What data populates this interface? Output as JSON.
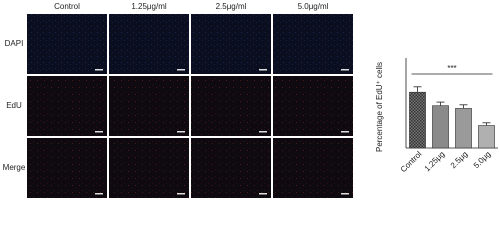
{
  "figure": {
    "columns": [
      "Control",
      "1.25μg/ml",
      "2.5μg/ml",
      "5.0μg/ml"
    ],
    "rows": [
      "DAPI",
      "EdU",
      "Merge"
    ]
  },
  "chart_data": {
    "type": "bar",
    "ylabel": "Percentage of EdU⁺ cells",
    "categories": [
      "Control",
      "1.25μg",
      "2.5μg",
      "5.0μg"
    ],
    "values": [
      62,
      47,
      44,
      25
    ],
    "errors": [
      6,
      4,
      4,
      3
    ],
    "colors": [
      "#5a5a5a",
      "#8a8a8a",
      "#9a9a9a",
      "#b0b0b0"
    ],
    "ylim": [
      0,
      100
    ],
    "annotation": "***"
  }
}
